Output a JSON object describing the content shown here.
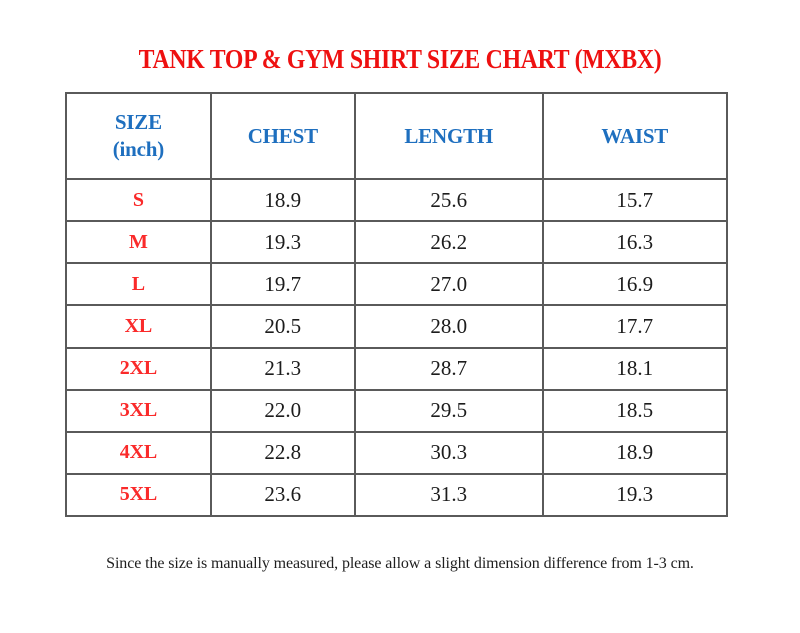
{
  "title": "TANK TOP & GYM SHIRT SIZE CHART (MXBX)",
  "table": {
    "headers": [
      "SIZE\n(inch)",
      "CHEST",
      "LENGTH",
      "WAIST"
    ],
    "rows": [
      {
        "size": "S",
        "chest": "18.9",
        "length": "25.6",
        "waist": "15.7"
      },
      {
        "size": "M",
        "chest": "19.3",
        "length": "26.2",
        "waist": "16.3"
      },
      {
        "size": "L",
        "chest": "19.7",
        "length": "27.0",
        "waist": "16.9"
      },
      {
        "size": "XL",
        "chest": "20.5",
        "length": "28.0",
        "waist": "17.7"
      },
      {
        "size": "2XL",
        "chest": "21.3",
        "length": "28.7",
        "waist": "18.1"
      },
      {
        "size": "3XL",
        "chest": "22.0",
        "length": "29.5",
        "waist": "18.5"
      },
      {
        "size": "4XL",
        "chest": "22.8",
        "length": "30.3",
        "waist": "18.9"
      },
      {
        "size": "5XL",
        "chest": "23.6",
        "length": "31.3",
        "waist": "19.3"
      }
    ]
  },
  "footnote": "Since the size is manually measured, please allow a slight dimension difference from 1-3 cm.",
  "colors": {
    "title_red": "#ee1010",
    "size_label_red": "#fa2a2a",
    "header_blue": "#1e6fbf",
    "value_text": "#1c1c1c",
    "grid_line": "#5a5a5a",
    "page_bg": "#ffffff"
  },
  "chart_data": {
    "type": "table",
    "title": "TANK TOP & GYM SHIRT SIZE CHART (MXBX)",
    "unit": "inch",
    "columns": [
      "SIZE (inch)",
      "CHEST",
      "LENGTH",
      "WAIST"
    ],
    "rows": [
      [
        "S",
        18.9,
        25.6,
        15.7
      ],
      [
        "M",
        19.3,
        26.2,
        16.3
      ],
      [
        "L",
        19.7,
        27.0,
        16.9
      ],
      [
        "XL",
        20.5,
        28.0,
        17.7
      ],
      [
        "2XL",
        21.3,
        28.7,
        18.1
      ],
      [
        "3XL",
        22.0,
        29.5,
        18.5
      ],
      [
        "4XL",
        22.8,
        30.3,
        18.9
      ],
      [
        "5XL",
        23.6,
        31.3,
        19.3
      ]
    ],
    "note": "Since the size is manually measured, please allow a slight dimension difference from 1-3 cm."
  }
}
